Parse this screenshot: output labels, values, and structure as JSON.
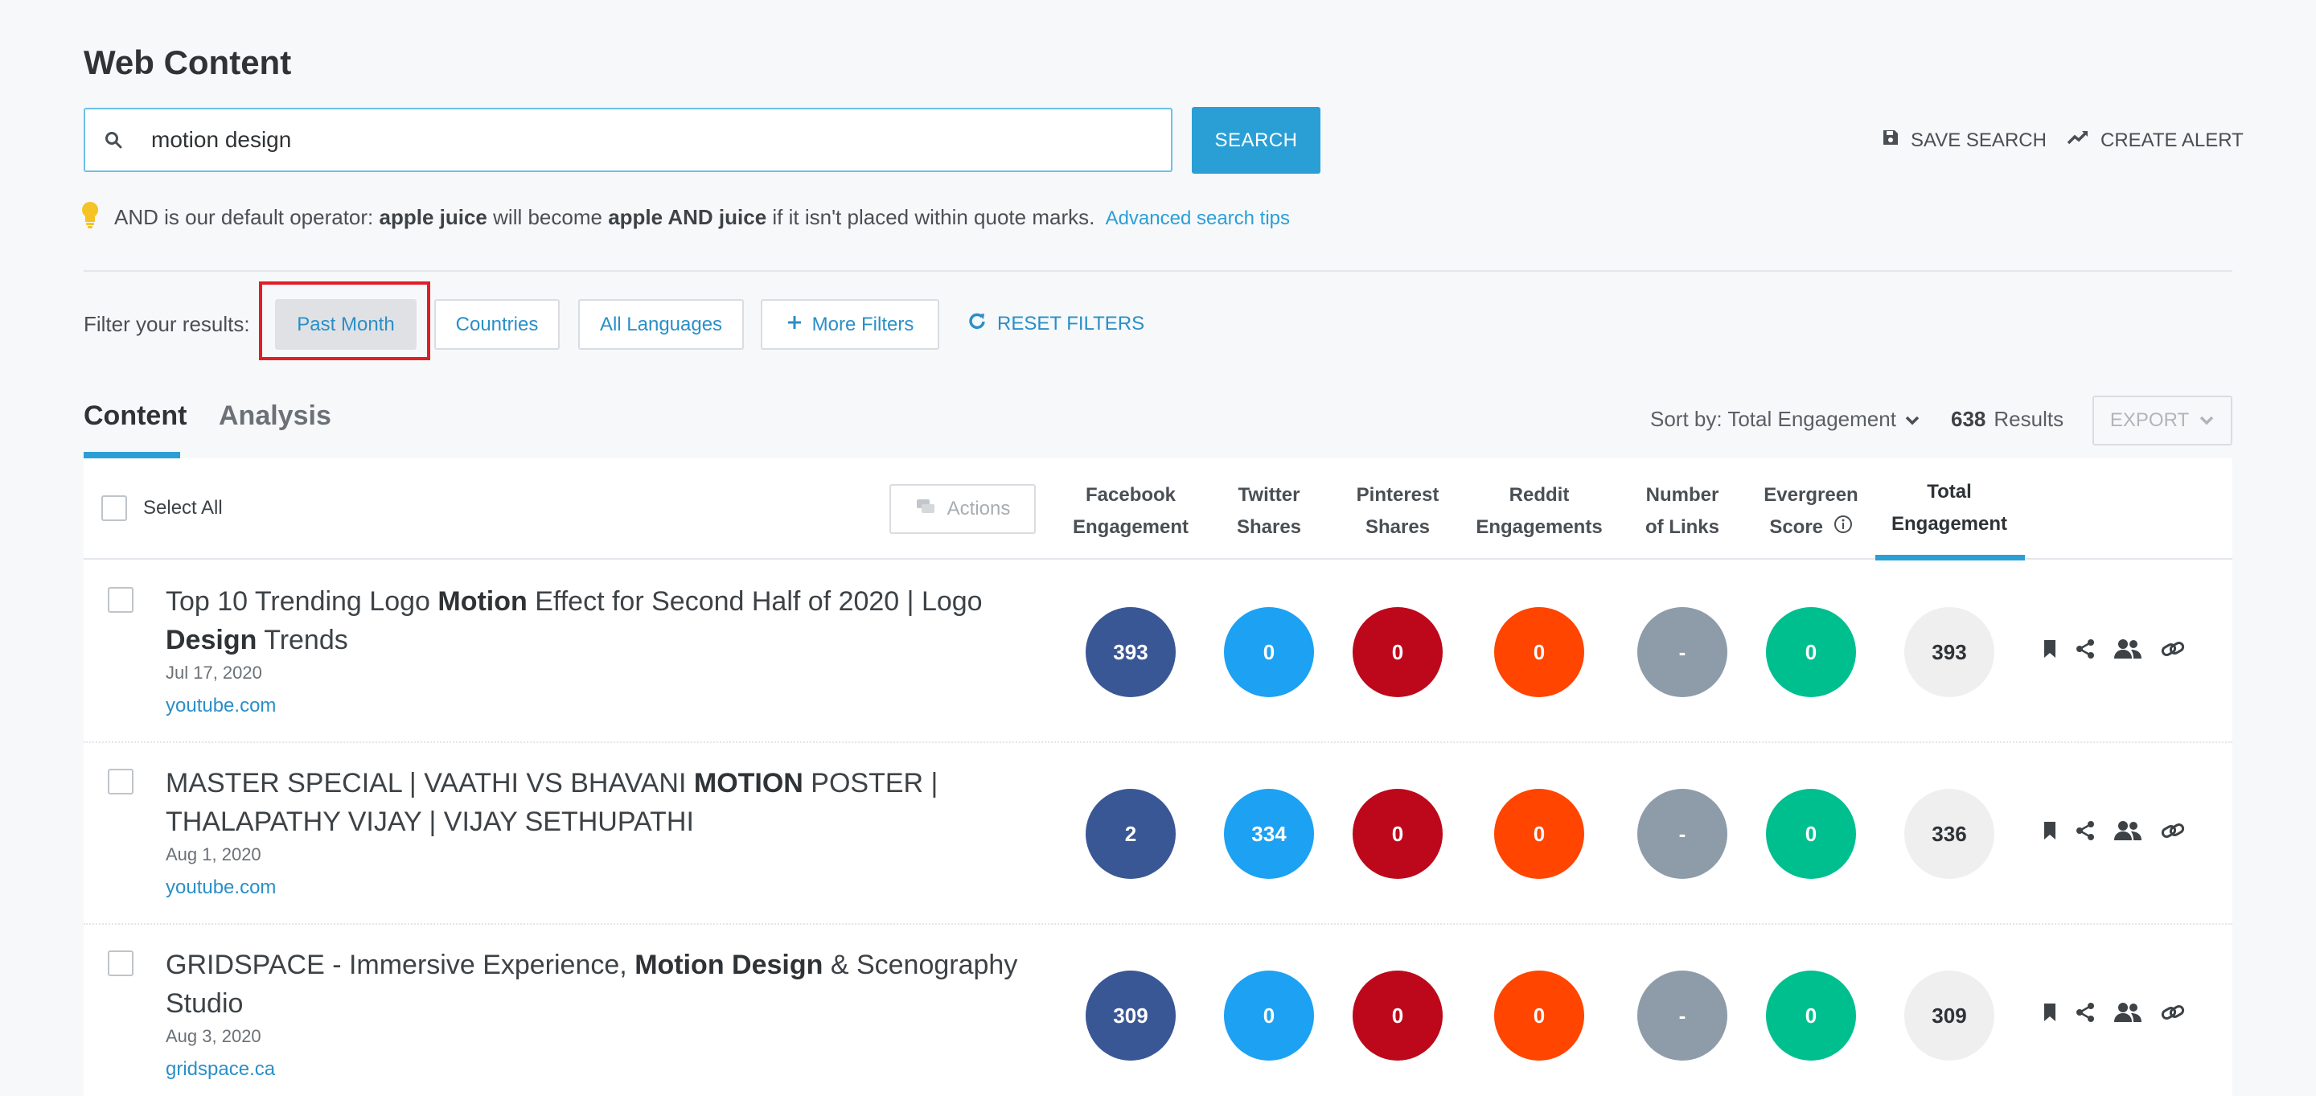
{
  "page": {
    "title": "Web Content"
  },
  "search": {
    "value": "motion design",
    "button_label": "SEARCH",
    "save_label": "SAVE SEARCH",
    "alert_label": "CREATE ALERT"
  },
  "tip": {
    "part1": "AND is our default operator:",
    "bold1": "apple juice",
    "part2": "will become",
    "bold2": "apple AND juice",
    "part3": "if it isn't placed within quote marks.",
    "link": "Advanced search tips"
  },
  "filters": {
    "label": "Filter your results:",
    "past_month": "Past Month",
    "countries": "Countries",
    "languages": "All Languages",
    "more": "More Filters",
    "reset": "RESET FILTERS"
  },
  "tabs": {
    "content": "Content",
    "analysis": "Analysis"
  },
  "sort": {
    "label": "Sort by: Total Engagement",
    "count": "638",
    "results_label": "Results",
    "export_label": "EXPORT"
  },
  "table": {
    "select_all": "Select All",
    "actions": "Actions",
    "columns": {
      "facebook": [
        "Facebook",
        "Engagement"
      ],
      "twitter": [
        "Twitter",
        "Shares"
      ],
      "pinterest": [
        "Pinterest",
        "Shares"
      ],
      "reddit": [
        "Reddit",
        "Engagements"
      ],
      "links": [
        "Number",
        "of Links"
      ],
      "evergreen": [
        "Evergreen",
        "Score"
      ],
      "total": [
        "Total",
        "Engagement"
      ]
    },
    "rows": [
      {
        "title_segments": [
          {
            "text": "Top 10 Trending Logo ",
            "bold": false
          },
          {
            "text": "Motion",
            "bold": true
          },
          {
            "text": " Effect for Second Half of 2020 | Logo ",
            "bold": false
          },
          {
            "text": "Design",
            "bold": true
          },
          {
            "text": " Trends",
            "bold": false
          }
        ],
        "date": "Jul 17, 2020",
        "domain": "youtube.com",
        "facebook": "393",
        "twitter": "0",
        "pinterest": "0",
        "reddit": "0",
        "links": "-",
        "evergreen": "0",
        "total": "393"
      },
      {
        "title_segments": [
          {
            "text": "MASTER SPECIAL | VAATHI VS BHAVANI ",
            "bold": false
          },
          {
            "text": "MOTION",
            "bold": true
          },
          {
            "text": " POSTER | THALAPATHY VIJAY | VIJAY SETHUPATHI",
            "bold": false
          }
        ],
        "date": "Aug 1, 2020",
        "domain": "youtube.com",
        "facebook": "2",
        "twitter": "334",
        "pinterest": "0",
        "reddit": "0",
        "links": "-",
        "evergreen": "0",
        "total": "336"
      },
      {
        "title_segments": [
          {
            "text": "GRIDSPACE - Immersive Experience, ",
            "bold": false
          },
          {
            "text": "Motion Design",
            "bold": true
          },
          {
            "text": " & Scenography Studio",
            "bold": false
          }
        ],
        "date": "Aug 3, 2020",
        "domain": "gridspace.ca",
        "facebook": "309",
        "twitter": "0",
        "pinterest": "0",
        "reddit": "0",
        "links": "-",
        "evergreen": "0",
        "total": "309"
      }
    ]
  },
  "colors": {
    "accent": "#2a9fd6",
    "facebook": "#3a5795",
    "twitter": "#1da1f2",
    "pinterest": "#bd081c",
    "reddit": "#ff4500",
    "links": "#8d9ca8",
    "evergreen": "#00bf8f",
    "highlight": "#e01e26"
  },
  "icons": [
    "search-icon",
    "save-icon",
    "trend-icon",
    "bulb-icon",
    "plus-icon",
    "refresh-icon",
    "chevron-down-icon",
    "actions-icon",
    "info-icon",
    "bookmark-icon",
    "share-icon",
    "users-icon",
    "link-icon"
  ]
}
